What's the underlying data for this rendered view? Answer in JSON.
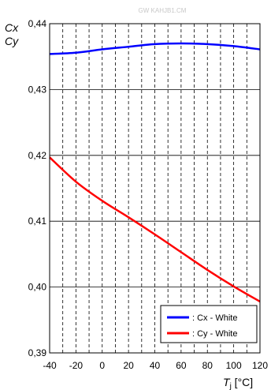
{
  "watermark": "GW KAHJB1.CM",
  "chart_data": {
    "type": "line",
    "ylabel_line1": "Cx",
    "ylabel_line2": "Cy",
    "xlabel_main": "T",
    "xlabel_sub": "j",
    "xlabel_unit": " [°C]",
    "xlim": [
      -40,
      120
    ],
    "ylim": [
      0.39,
      0.44
    ],
    "x_ticks": [
      -40,
      -20,
      0,
      20,
      40,
      60,
      80,
      100,
      120
    ],
    "x_tick_labels": [
      "-40",
      "-20",
      "0",
      "20",
      "40",
      "60",
      "80",
      "100",
      "120"
    ],
    "y_ticks": [
      0.39,
      0.4,
      0.41,
      0.42,
      0.43,
      0.44
    ],
    "y_tick_labels": [
      "0,39",
      "0,40",
      "0,41",
      "0,42",
      "0,43",
      "0,44"
    ],
    "grid": {
      "x_minor_step": 10,
      "y_major_step": 0.01,
      "style": "dashed"
    },
    "legend_position": "bottom-right",
    "series": [
      {
        "name": ": Cx - White",
        "color": "#0000ff",
        "x": [
          -40,
          -20,
          0,
          20,
          40,
          60,
          80,
          100,
          120
        ],
        "y": [
          0.4354,
          0.4356,
          0.4361,
          0.4365,
          0.4369,
          0.437,
          0.4369,
          0.4366,
          0.4361
        ]
      },
      {
        "name": ": Cy - White",
        "color": "#ff0000",
        "x": [
          -40,
          -20,
          0,
          20,
          40,
          60,
          80,
          100,
          120
        ],
        "y": [
          0.4197,
          0.416,
          0.4131,
          0.4106,
          0.408,
          0.4053,
          0.4026,
          0.4001,
          0.3978
        ]
      }
    ]
  }
}
